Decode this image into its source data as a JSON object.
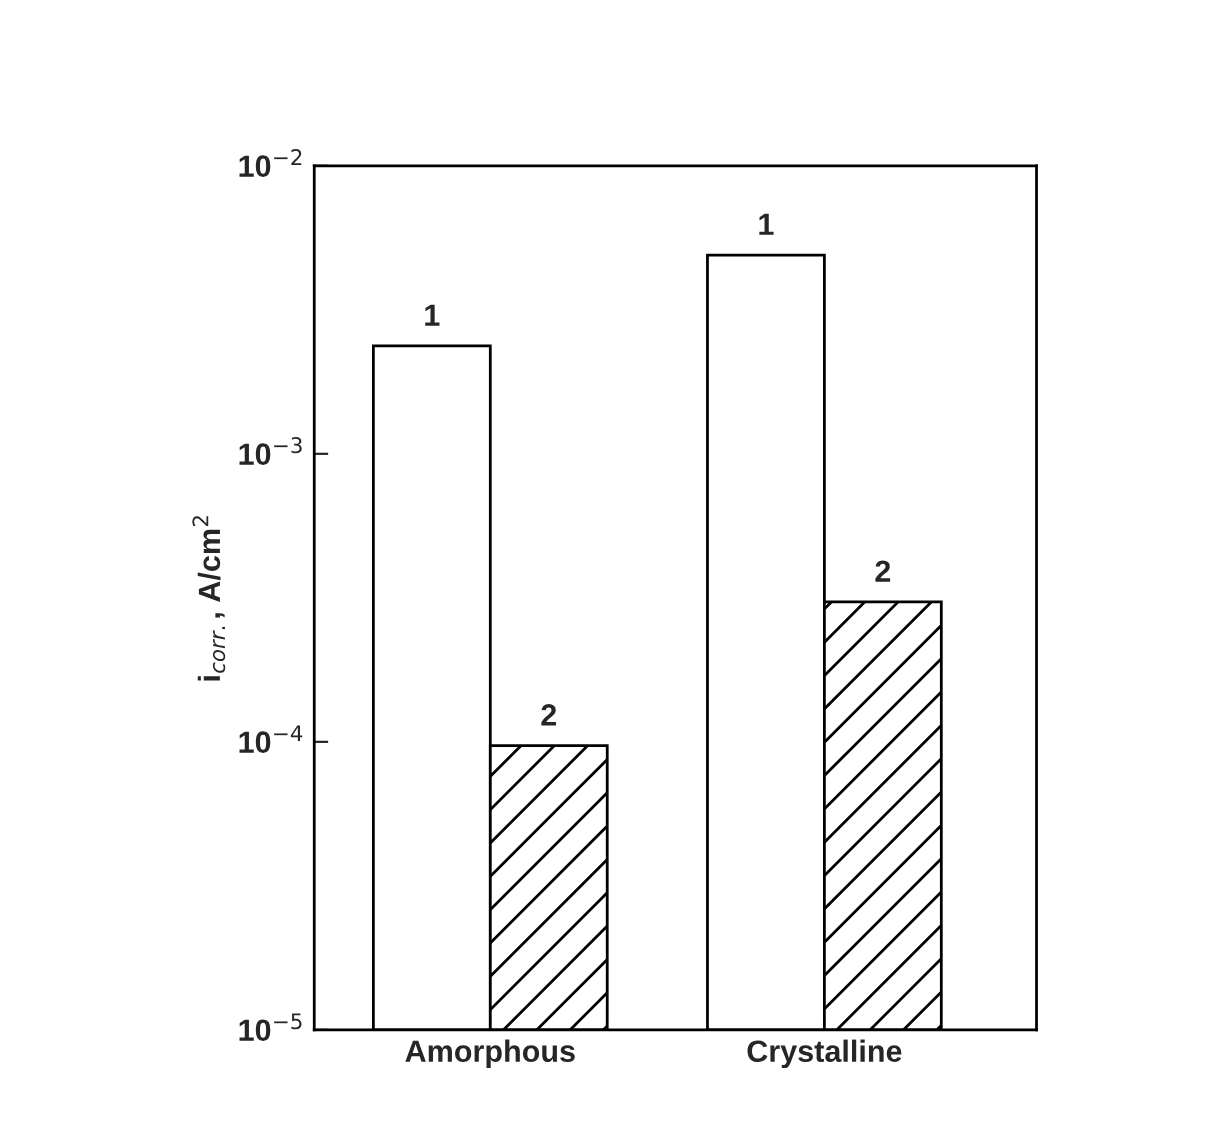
{
  "chart_data": {
    "type": "bar",
    "ylabel": "i$_{corr.}$, A/cm$^{2}$",
    "categories": [
      "Amorphous",
      "Crystalline"
    ],
    "series": [
      {
        "name": "1",
        "color": "#ffffff",
        "values": [
          0.00237,
          0.0049
        ]
      },
      {
        "name": "2",
        "color": "#000000",
        "values": [
          9.7e-05,
          0.000306
        ]
      }
    ],
    "log": true,
    "ylim": [
      1e-05,
      0.01
    ],
    "yticks": [
      {
        "value": 1e-05,
        "label": "10$^{−5}$"
      },
      {
        "value": 0.0001,
        "label": "10$^{−4}$"
      },
      {
        "value": 0.001,
        "label": "10$^{−3}$"
      },
      {
        "value": 0.01,
        "label": "10$^{−2}$"
      }
    ],
    "grid": false,
    "legend": false
  }
}
